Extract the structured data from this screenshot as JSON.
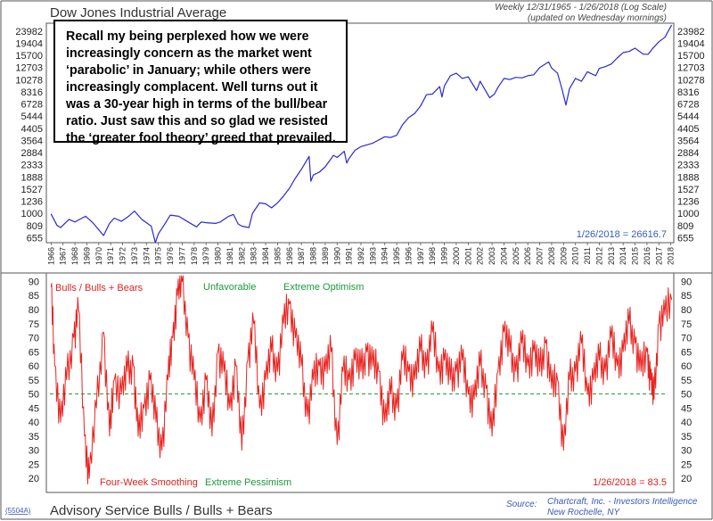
{
  "top_panel": {
    "title": "Dow Jones Industrial Average",
    "subtitle_line1": "Weekly 12/31/1965 - 1/26/2018 (Log Scale)",
    "subtitle_line2": "(updated on Wednesday mornings)",
    "last_value_label": "1/26/2018 = 26616.7"
  },
  "annotation": {
    "text": "Recall my being perplexed how we were increasingly concern as the market went ‘parabolic’ in January; while others were increasingly complacent. Well turns out it was a 30-year high in terms of the bull/bear ratio. Just saw this and so glad we resisted the ‘greater fool theory’ greed that prevailed."
  },
  "bottom_panel": {
    "title": "Advisory Service Bulls / Bulls + Bears",
    "series_label": "Bulls / Bulls + Bears",
    "unfavorable_label": "Unfavorable",
    "extreme_optimism_label": "Extreme Optimism",
    "smoothing_label": "Four-Week Smoothing",
    "extreme_pessimism_label": "Extreme Pessimism",
    "last_value_label": "1/26/2018 = 83.5",
    "chart_id": "(5504A)",
    "source_label": "Source:",
    "source_line1": "Chartcraft, Inc. - Investors Intelligence",
    "source_line2": "New Rochelle, NY"
  },
  "colors": {
    "dow_line": "#2a2ad0",
    "ratio_line": "#e8231f",
    "reference_line": "#1a9a3a",
    "label_red": "#d8231f",
    "label_green": "#1a9a3a",
    "label_blue": "#3a5ab8",
    "frame": "#555555"
  },
  "chart_data": [
    {
      "type": "line",
      "title": "Dow Jones Industrial Average",
      "scale": "log",
      "x_ticks": [
        "1966",
        "1967",
        "1968",
        "1969",
        "1970",
        "1971",
        "1972",
        "1973",
        "1974",
        "1975",
        "1976",
        "1977",
        "1978",
        "1979",
        "1980",
        "1981",
        "1982",
        "1983",
        "1984",
        "1985",
        "1986",
        "1987",
        "1988",
        "1989",
        "1990",
        "1991",
        "1992",
        "1993",
        "1994",
        "1995",
        "1996",
        "1997",
        "1998",
        "1999",
        "2000",
        "2001",
        "2002",
        "2003",
        "2004",
        "2005",
        "2006",
        "2007",
        "2008",
        "2009",
        "2010",
        "2011",
        "2012",
        "2013",
        "2014",
        "2015",
        "2016",
        "2017",
        "2018"
      ],
      "y_ticks": [
        655,
        809,
        1000,
        1236,
        1527,
        1888,
        2333,
        2884,
        3564,
        4405,
        5444,
        6728,
        8316,
        10278,
        12703,
        15700,
        19404,
        23982
      ],
      "ylim": [
        600,
        27500
      ],
      "xlim": [
        1965.6,
        2018.25
      ],
      "series": [
        {
          "x": [
            1966.0,
            1966.5,
            1966.8,
            1967.5,
            1968.0,
            1968.4,
            1968.9,
            1969.5,
            1970.4,
            1970.9,
            1971.3,
            1971.9,
            1972.5,
            1973.0,
            1973.6,
            1974.0,
            1974.4,
            1974.75,
            1975.0,
            1975.5,
            1976.0,
            1976.7,
            1977.5,
            1978.2,
            1978.6,
            1979.0,
            1979.8,
            1980.2,
            1980.9,
            1981.3,
            1981.7,
            1982.0,
            1982.6,
            1982.9,
            1983.5,
            1984.0,
            1984.5,
            1985.0,
            1985.5,
            1986.0,
            1986.5,
            1987.0,
            1987.65,
            1987.8,
            1988.0,
            1988.5,
            1989.0,
            1989.7,
            1990.0,
            1990.6,
            1990.8,
            1991.0,
            1991.5,
            1992.0,
            1992.5,
            1993.0,
            1994.0,
            1994.5,
            1995.0,
            1995.5,
            1996.0,
            1996.5,
            1997.0,
            1997.5,
            1998.0,
            1998.6,
            1998.8,
            1999.0,
            1999.5,
            2000.0,
            2000.5,
            2001.0,
            2001.7,
            2002.0,
            2002.8,
            2003.2,
            2003.5,
            2004.0,
            2004.5,
            2005.0,
            2005.5,
            2006.0,
            2006.5,
            2007.0,
            2007.75,
            2008.0,
            2008.5,
            2008.9,
            2009.2,
            2009.5,
            2010.0,
            2010.5,
            2011.0,
            2011.7,
            2012.0,
            2012.5,
            2013.0,
            2013.5,
            2014.0,
            2014.5,
            2015.0,
            2015.7,
            2016.1,
            2016.5,
            2017.0,
            2017.5,
            2018.07
          ],
          "y": [
            990,
            810,
            780,
            900,
            860,
            900,
            950,
            850,
            680,
            840,
            920,
            870,
            950,
            1040,
            900,
            850,
            800,
            600,
            700,
            820,
            970,
            950,
            860,
            790,
            860,
            850,
            840,
            860,
            950,
            980,
            830,
            800,
            780,
            1000,
            1200,
            1180,
            1100,
            1200,
            1350,
            1550,
            1850,
            2150,
            2700,
            1750,
            1950,
            2050,
            2250,
            2750,
            2650,
            2950,
            2400,
            2600,
            3000,
            3200,
            3300,
            3400,
            3800,
            3750,
            3900,
            4700,
            5300,
            5700,
            6500,
            7900,
            8000,
            9100,
            7600,
            9200,
            11000,
            11500,
            10500,
            10800,
            8500,
            10000,
            7500,
            8000,
            9000,
            10500,
            10300,
            10700,
            10600,
            11000,
            11200,
            12700,
            14000,
            12600,
            11500,
            8500,
            6600,
            8800,
            10500,
            10000,
            11800,
            11000,
            12500,
            12900,
            13500,
            15000,
            16500,
            16800,
            17800,
            16000,
            16000,
            17800,
            19900,
            21500,
            26617
          ]
        }
      ]
    },
    {
      "type": "line",
      "title": "Advisory Service Bulls / Bulls + Bears",
      "y_ticks": [
        20,
        25,
        30,
        35,
        40,
        45,
        50,
        55,
        60,
        65,
        70,
        75,
        80,
        85,
        90
      ],
      "ylim": [
        15,
        93
      ],
      "xlim": [
        1965.6,
        2018.25
      ],
      "reference_line": 50,
      "series": [
        {
          "name": "Bulls / Bulls + Bears",
          "x": [
            1966.0,
            1966.3,
            1966.8,
            1967.3,
            1967.9,
            1968.3,
            1968.8,
            1969.2,
            1969.8,
            1970.4,
            1970.9,
            1971.3,
            1971.9,
            1972.4,
            1972.9,
            1973.3,
            1973.8,
            1974.3,
            1974.8,
            1975.3,
            1975.8,
            1976.2,
            1976.6,
            1977.0,
            1977.5,
            1978.0,
            1978.5,
            1979.0,
            1979.5,
            1980.0,
            1980.5,
            1981.0,
            1981.5,
            1982.0,
            1982.5,
            1983.0,
            1983.5,
            1984.0,
            1984.5,
            1985.0,
            1985.5,
            1986.0,
            1986.5,
            1987.0,
            1987.5,
            1988.0,
            1988.5,
            1989.0,
            1989.5,
            1990.0,
            1990.5,
            1991.0,
            1991.5,
            1992.0,
            1992.5,
            1993.0,
            1993.5,
            1994.0,
            1994.5,
            1995.0,
            1995.5,
            1996.0,
            1996.5,
            1997.0,
            1997.5,
            1998.0,
            1998.5,
            1999.0,
            1999.5,
            2000.0,
            2000.5,
            2001.0,
            2001.5,
            2002.0,
            2002.5,
            2003.0,
            2003.5,
            2004.0,
            2004.5,
            2005.0,
            2005.5,
            2006.0,
            2006.5,
            2007.0,
            2007.5,
            2008.0,
            2008.5,
            2009.0,
            2009.5,
            2010.0,
            2010.5,
            2011.0,
            2011.5,
            2012.0,
            2012.5,
            2013.0,
            2013.5,
            2014.0,
            2014.5,
            2015.0,
            2015.5,
            2016.0,
            2016.3,
            2016.6,
            2017.0,
            2017.5,
            2018.07
          ],
          "y": [
            88,
            60,
            40,
            55,
            70,
            80,
            35,
            20,
            45,
            72,
            35,
            55,
            50,
            58,
            60,
            35,
            45,
            55,
            40,
            30,
            55,
            70,
            85,
            90,
            70,
            55,
            40,
            55,
            35,
            65,
            58,
            45,
            60,
            30,
            62,
            75,
            45,
            55,
            65,
            58,
            75,
            82,
            70,
            60,
            42,
            55,
            60,
            58,
            65,
            32,
            58,
            55,
            62,
            58,
            65,
            60,
            58,
            40,
            50,
            45,
            62,
            58,
            55,
            65,
            60,
            72,
            58,
            62,
            55,
            58,
            62,
            50,
            48,
            60,
            52,
            35,
            58,
            72,
            65,
            58,
            68,
            60,
            65,
            58,
            68,
            52,
            55,
            30,
            55,
            58,
            68,
            50,
            55,
            62,
            58,
            70,
            60,
            65,
            75,
            68,
            58,
            65,
            55,
            48,
            75,
            78,
            83.5
          ]
        }
      ]
    }
  ]
}
